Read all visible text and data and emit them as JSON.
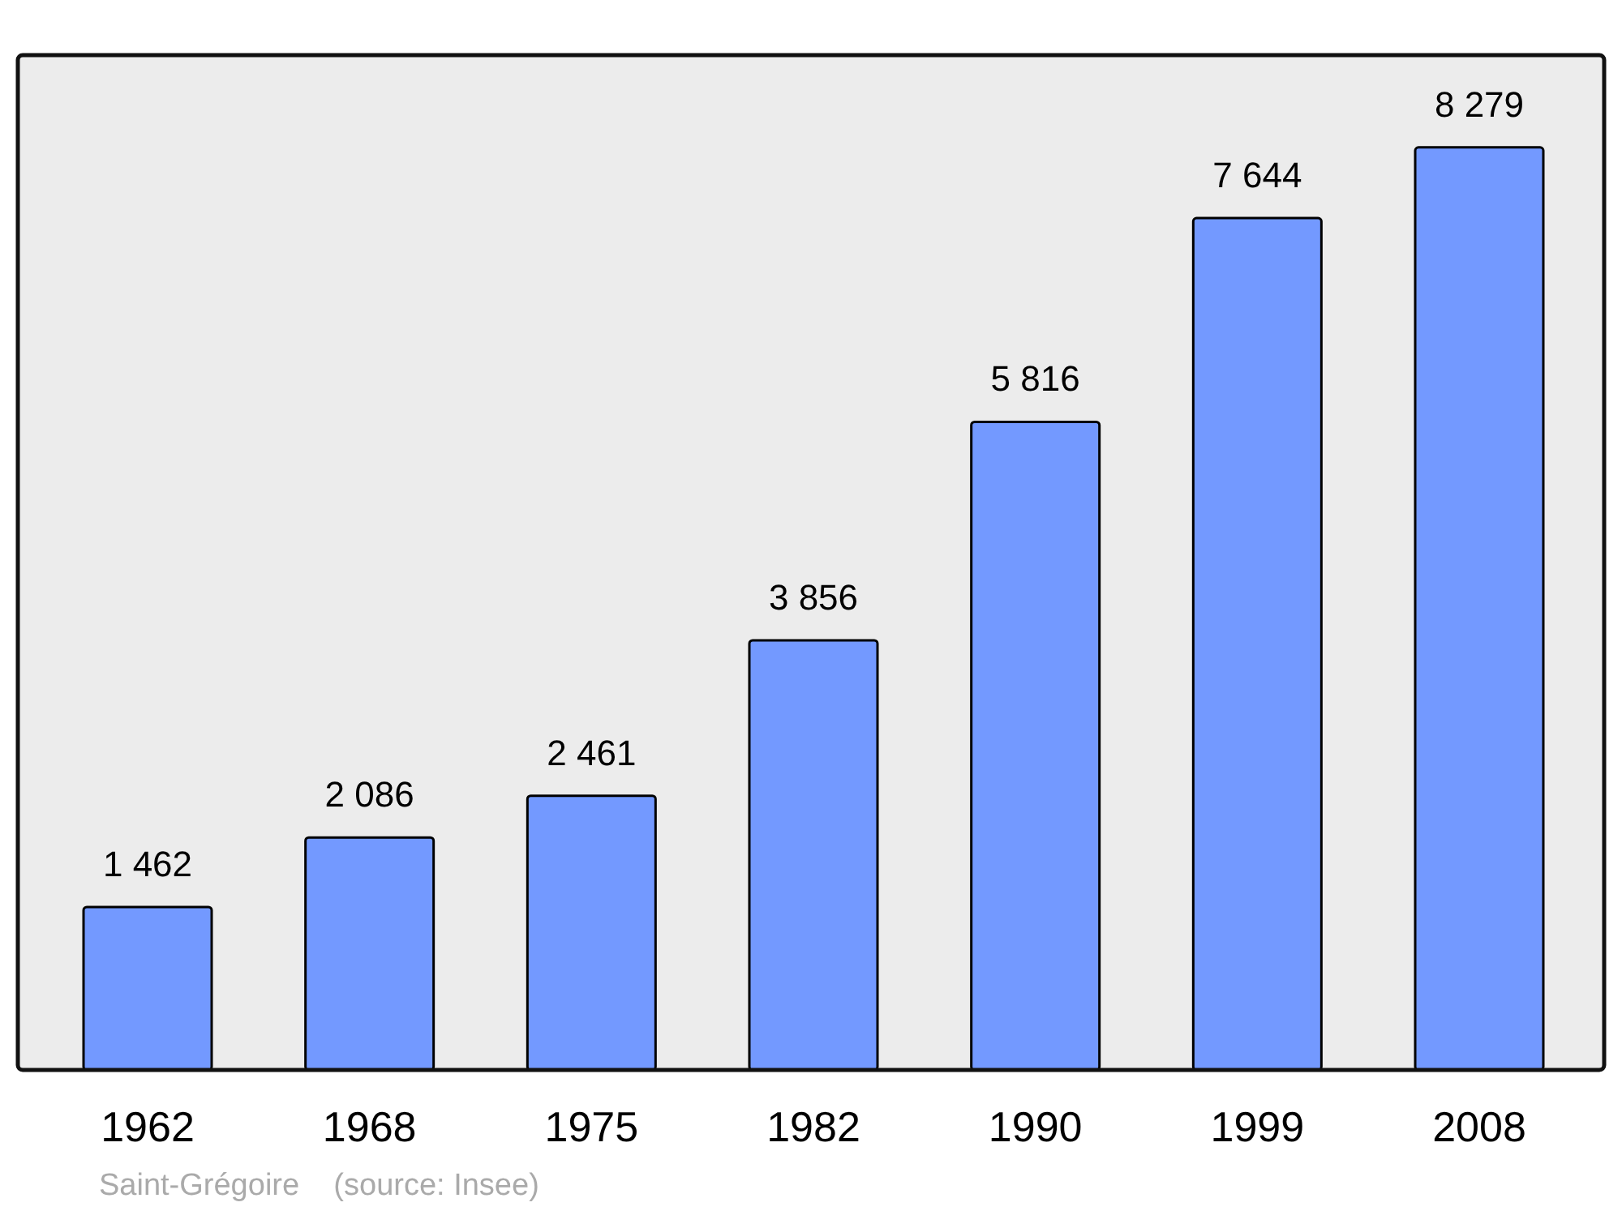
{
  "chart_data": {
    "type": "bar",
    "categories": [
      "1962",
      "1968",
      "1975",
      "1982",
      "1990",
      "1999",
      "2008"
    ],
    "values": [
      1462,
      2086,
      2461,
      3856,
      5816,
      7644,
      8279
    ],
    "value_labels": [
      "1 462",
      "2 086",
      "2 461",
      "3 856",
      "5 816",
      "7 644",
      "8 279"
    ],
    "color": "#7399ff",
    "annotations": [
      "Saint-Grégoire    (source: Insee)"
    ]
  }
}
